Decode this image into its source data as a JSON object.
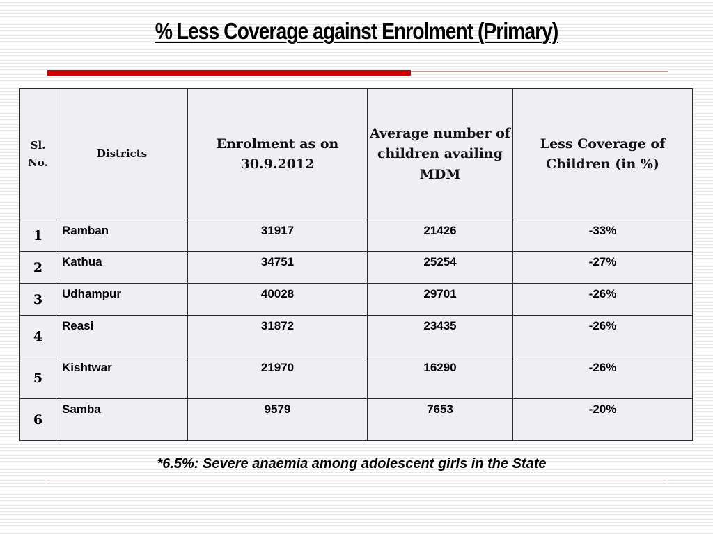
{
  "slide": {
    "title": "% Less Coverage against Enrolment (Primary)",
    "footnote": "*6.5%: Severe anaemia among adolescent girls in the State",
    "accent_color": "#cc0000"
  },
  "table": {
    "headers": {
      "sl": "Sl. No.",
      "district": "Districts",
      "enrolment": "Enrolment as on 30.9.2012",
      "avg_children": "Average number of children availing MDM",
      "less_coverage": "Less Coverage of Children  (in %)"
    },
    "rows": [
      {
        "sl": "1",
        "district": "Ramban",
        "enrolment": "31917",
        "avg_children": "21426",
        "less_coverage": "-33%"
      },
      {
        "sl": "2",
        "district": "Kathua",
        "enrolment": "34751",
        "avg_children": "25254",
        "less_coverage": "-27%"
      },
      {
        "sl": "3",
        "district": "Udhampur",
        "enrolment": "40028",
        "avg_children": "29701",
        "less_coverage": "-26%"
      },
      {
        "sl": "4",
        "district": "Reasi",
        "enrolment": "31872",
        "avg_children": "23435",
        "less_coverage": "-26%"
      },
      {
        "sl": "5",
        "district": "Kishtwar",
        "enrolment": "21970",
        "avg_children": "16290",
        "less_coverage": "-26%"
      },
      {
        "sl": "6",
        "district": "Samba",
        "enrolment": "9579",
        "avg_children": "7653",
        "less_coverage": "-20%"
      }
    ]
  }
}
